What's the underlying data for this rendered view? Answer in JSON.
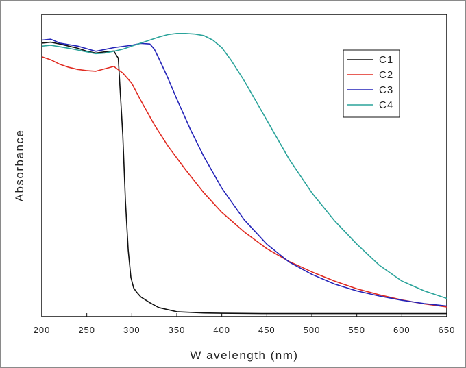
{
  "chart_data": {
    "type": "line",
    "title": "",
    "xlabel": "W avelength (nm)",
    "ylabel": "Absorbance",
    "xlim": [
      200,
      650
    ],
    "ylim": [
      0,
      1.0
    ],
    "x_ticks": [
      200,
      250,
      300,
      350,
      400,
      450,
      500,
      550,
      600,
      650
    ],
    "y_ticks_shown": false,
    "grid": false,
    "legend_position": "top-right",
    "series": [
      {
        "name": "C1",
        "color": "#111111",
        "x": [
          200,
          210,
          220,
          230,
          240,
          250,
          260,
          270,
          280,
          285,
          290,
          293,
          296,
          299,
          302,
          305,
          310,
          320,
          330,
          350,
          380,
          400,
          450,
          500,
          550,
          600,
          650
        ],
        "y": [
          0.905,
          0.908,
          0.902,
          0.895,
          0.888,
          0.878,
          0.872,
          0.876,
          0.879,
          0.855,
          0.6,
          0.38,
          0.22,
          0.13,
          0.095,
          0.082,
          0.065,
          0.046,
          0.03,
          0.016,
          0.012,
          0.011,
          0.01,
          0.01,
          0.01,
          0.01,
          0.01
        ]
      },
      {
        "name": "C2",
        "color": "#e02a20",
        "x": [
          200,
          210,
          220,
          230,
          240,
          250,
          260,
          270,
          280,
          290,
          300,
          310,
          325,
          340,
          360,
          380,
          400,
          425,
          450,
          475,
          500,
          525,
          550,
          575,
          600,
          625,
          650
        ],
        "y": [
          0.86,
          0.85,
          0.835,
          0.825,
          0.818,
          0.814,
          0.812,
          0.82,
          0.828,
          0.806,
          0.772,
          0.715,
          0.635,
          0.565,
          0.485,
          0.41,
          0.345,
          0.28,
          0.225,
          0.182,
          0.148,
          0.118,
          0.092,
          0.072,
          0.055,
          0.042,
          0.032
        ]
      },
      {
        "name": "C3",
        "color": "#2424b8",
        "x": [
          200,
          210,
          220,
          240,
          260,
          280,
          300,
          310,
          320,
          325,
          330,
          340,
          350,
          365,
          380,
          400,
          425,
          450,
          475,
          500,
          525,
          550,
          575,
          600,
          625,
          650
        ],
        "y": [
          0.915,
          0.918,
          0.905,
          0.895,
          0.878,
          0.89,
          0.898,
          0.904,
          0.902,
          0.885,
          0.855,
          0.79,
          0.72,
          0.62,
          0.53,
          0.425,
          0.32,
          0.24,
          0.18,
          0.14,
          0.108,
          0.085,
          0.068,
          0.054,
          0.043,
          0.035
        ]
      },
      {
        "name": "C4",
        "color": "#2aa39a",
        "x": [
          200,
          210,
          220,
          230,
          240,
          250,
          260,
          270,
          280,
          290,
          300,
          310,
          320,
          330,
          340,
          350,
          360,
          370,
          380,
          390,
          400,
          410,
          425,
          450,
          475,
          500,
          525,
          550,
          575,
          600,
          625,
          650
        ],
        "y": [
          0.895,
          0.898,
          0.893,
          0.888,
          0.882,
          0.876,
          0.87,
          0.872,
          0.878,
          0.885,
          0.895,
          0.905,
          0.915,
          0.925,
          0.933,
          0.937,
          0.937,
          0.935,
          0.93,
          0.915,
          0.89,
          0.85,
          0.78,
          0.65,
          0.52,
          0.41,
          0.318,
          0.24,
          0.17,
          0.118,
          0.085,
          0.06
        ]
      }
    ]
  }
}
